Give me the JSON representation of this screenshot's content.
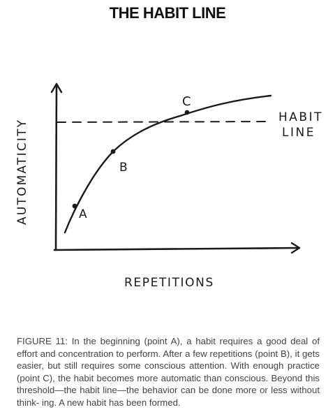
{
  "title": "THE HABIT LINE",
  "diagram": {
    "y_axis_label": "AUTOMATICITY",
    "x_axis_label": "REPETITIONS",
    "threshold_label_line1": "HABIT",
    "threshold_label_line2": "LINE",
    "points": [
      {
        "label": "A"
      },
      {
        "label": "B"
      },
      {
        "label": "C"
      }
    ]
  },
  "caption": "FIGURE 11: In the beginning (point A), a habit requires a good deal of effort and concentration to perform. After a few repetitions (point B), it gets easier, but still requires some conscious attention. With enough practice (point C), the habit becomes more automatic than conscious. Beyond this threshold—the habit line—the behavior can be done more or less without think- ing. A new habit has been formed."
}
